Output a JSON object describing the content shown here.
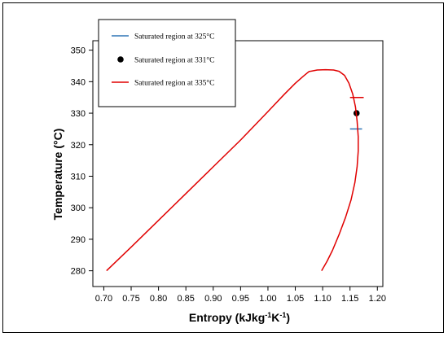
{
  "chart_data": {
    "type": "line",
    "title": "",
    "xlabel": "Entropy (kJkg",
    "xlabel_sup1": "-1",
    "xlabel_mid": "K",
    "xlabel_sup2": "-1",
    "xlabel_end": ")",
    "ylabel": "Temperature (°C)",
    "xlim": [
      0.68,
      1.21
    ],
    "ylim": [
      275,
      353
    ],
    "xticks": [
      0.7,
      0.75,
      0.8,
      0.85,
      0.9,
      0.95,
      1.0,
      1.05,
      1.1,
      1.15,
      1.2
    ],
    "xtick_labels": [
      "0.70",
      "0.75",
      "0.80",
      "0.85",
      "0.90",
      "0.95",
      "1.00",
      "1.05",
      "1.10",
      "1.15",
      "1.20"
    ],
    "yticks": [
      280,
      290,
      300,
      310,
      320,
      330,
      340,
      350
    ],
    "ytick_labels": [
      "280",
      "290",
      "300",
      "310",
      "320",
      "330",
      "340",
      "350"
    ],
    "grid": false,
    "legend_position": "top-left",
    "series": [
      {
        "name": "Saturated region at 325°C",
        "kind": "horizontal-line",
        "color": "#2e75b6",
        "x": [
          1.15,
          1.172
        ],
        "y": [
          325,
          325
        ]
      },
      {
        "name": "Saturated region at 331°C",
        "kind": "point",
        "color": "#000000",
        "x": [
          1.162
        ],
        "y": [
          330
        ]
      },
      {
        "name": "Saturated region at 335°C",
        "kind": "curve",
        "color": "#e00000",
        "x": [
          0.705,
          0.75,
          0.8,
          0.85,
          0.9,
          0.95,
          1.0,
          1.03,
          1.05,
          1.065,
          1.075,
          1.09,
          1.105,
          1.12,
          1.13,
          1.14,
          1.148,
          1.155,
          1.16,
          1.163,
          1.165,
          1.165,
          1.163,
          1.159,
          1.152,
          1.142,
          1.13,
          1.118,
          1.108,
          1.098
        ],
        "y": [
          280,
          287.5,
          296.0,
          304.5,
          313.0,
          321.5,
          330.5,
          336.0,
          339.5,
          341.8,
          343.2,
          343.7,
          343.8,
          343.7,
          343.3,
          342.0,
          339.5,
          336.0,
          332.0,
          327.5,
          322.5,
          318.0,
          313.0,
          308.0,
          302.5,
          297.0,
          291.5,
          286.5,
          283.0,
          280.0
        ]
      },
      {
        "name": "",
        "kind": "horizontal-line",
        "color": "#e00000",
        "x": [
          1.15,
          1.175
        ],
        "y": [
          335,
          335
        ]
      }
    ]
  }
}
